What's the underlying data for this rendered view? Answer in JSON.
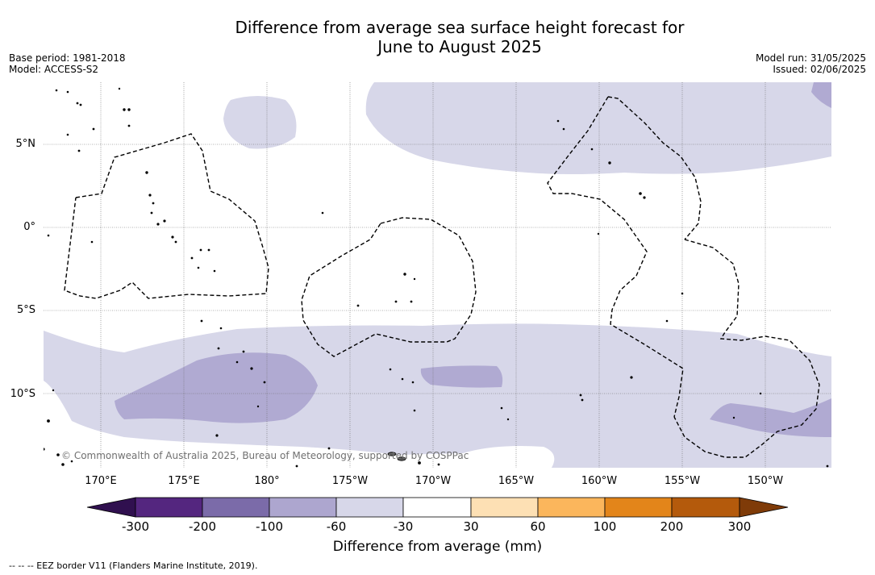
{
  "title": {
    "line1": "Difference from average sea surface height forecast for",
    "line2": "June to August 2025"
  },
  "meta_left": {
    "base_period": "Base period: 1981-2018",
    "model": "Model: ACCESS-S2"
  },
  "meta_right": {
    "model_run": "Model run: 31/05/2025",
    "issued": "Issued: 02/06/2025"
  },
  "lat_labels": [
    "5°N",
    "0°",
    "5°S",
    "10°S"
  ],
  "lon_labels": [
    "170°E",
    "175°E",
    "180°",
    "175°W",
    "170°W",
    "165°W",
    "160°W",
    "155°W",
    "150°W"
  ],
  "copyright": "© Commonwealth of Australia 2025, Bureau of Meteorology, supported by COSPPac",
  "colorbar": {
    "labels": [
      "-300",
      "-200",
      "-100",
      "-60",
      "-30",
      "30",
      "60",
      "100",
      "200",
      "300"
    ],
    "colors": [
      "#30104f",
      "#54267f",
      "#7b6ba9",
      "#ada6cf",
      "#d7d7e9",
      "#ffffff",
      "#fde0b4",
      "#fbb65c",
      "#e3851a",
      "#b45a0c",
      "#7f3b08"
    ],
    "title": "Difference from average (mm)"
  },
  "legend_footer": "--  --  -- EEZ border V11 (Flanders Marine Institute, 2019).",
  "map": {
    "colors": {
      "anomaly_light": "#d7d7e9",
      "anomaly_medium": "#b0aad2",
      "gridline": "#666666",
      "eez_border": "#000000"
    }
  }
}
